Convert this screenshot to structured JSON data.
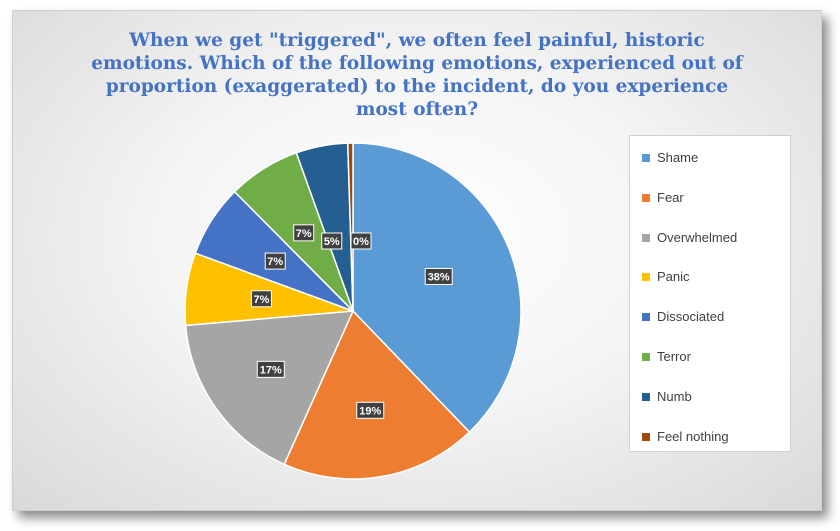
{
  "chart_data": {
    "type": "pie",
    "title_lines": [
      "When we get \"triggered\", we often feel painful, historic",
      "emotions.  Which of the following emotions, experienced out of",
      "proportion (exaggerated) to the incident, do you experience",
      "most often?"
    ],
    "legend_position": "right",
    "slices": [
      {
        "label": "Shame",
        "value": 38,
        "display": "38%",
        "color": "#5b9bd5"
      },
      {
        "label": "Fear",
        "value": 19,
        "display": "19%",
        "color": "#ed7d31"
      },
      {
        "label": "Overwhelmed",
        "value": 17,
        "display": "17%",
        "color": "#a5a5a5"
      },
      {
        "label": "Panic",
        "value": 7,
        "display": "7%",
        "color": "#ffc000"
      },
      {
        "label": "Dissociated",
        "value": 7,
        "display": "7%",
        "color": "#4472c4"
      },
      {
        "label": "Terror",
        "value": 7,
        "display": "7%",
        "color": "#70ad47"
      },
      {
        "label": "Numb",
        "value": 5,
        "display": "5%",
        "color": "#255e91"
      },
      {
        "label": "Feel nothing",
        "value": 0.5,
        "display": "0%",
        "color": "#9e480e"
      }
    ]
  }
}
